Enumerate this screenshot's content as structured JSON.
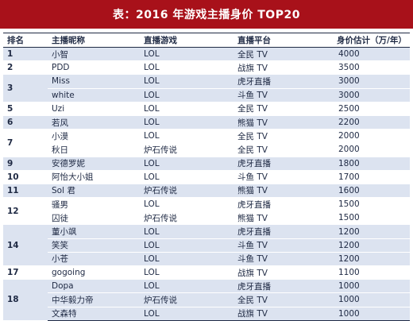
{
  "title": "表：2016 年游戏主播身价 TOP20",
  "headers": {
    "rank": "排名",
    "name": "主播昵称",
    "game": "直播游戏",
    "platform": "直播平台",
    "value": "身价估计（万/年）"
  },
  "groups": [
    {
      "rank": "1",
      "rows": [
        {
          "name": "小智",
          "game": "LOL",
          "platform": "全民 TV",
          "value": "4000"
        }
      ]
    },
    {
      "rank": "2",
      "rows": [
        {
          "name": "PDD",
          "game": "LOL",
          "platform": "战旗 TV",
          "value": "3500"
        }
      ]
    },
    {
      "rank": "3",
      "rows": [
        {
          "name": "Miss",
          "game": "LOL",
          "platform": "虎牙直播",
          "value": "3000"
        },
        {
          "name": "white",
          "game": "LOL",
          "platform": "斗鱼 TV",
          "value": "3000"
        }
      ]
    },
    {
      "rank": "5",
      "rows": [
        {
          "name": "Uzi",
          "game": "LOL",
          "platform": "全民 TV",
          "value": "2500"
        }
      ]
    },
    {
      "rank": "6",
      "rows": [
        {
          "name": "若风",
          "game": "LOL",
          "platform": "熊猫 TV",
          "value": "2200"
        }
      ]
    },
    {
      "rank": "7",
      "rows": [
        {
          "name": "小漠",
          "game": "LOL",
          "platform": "全民 TV",
          "value": "2000"
        },
        {
          "name": "秋日",
          "game": "炉石传说",
          "platform": "全民 TV",
          "value": "2000"
        }
      ]
    },
    {
      "rank": "9",
      "rows": [
        {
          "name": "安德罗妮",
          "game": "LOL",
          "platform": "虎牙直播",
          "value": "1800"
        }
      ]
    },
    {
      "rank": "10",
      "rows": [
        {
          "name": "阿怡大小姐",
          "game": "LOL",
          "platform": "斗鱼 TV",
          "value": "1700"
        }
      ]
    },
    {
      "rank": "11",
      "rows": [
        {
          "name": "Sol 君",
          "game": "炉石传说",
          "platform": "熊猫 TV",
          "value": "1600"
        }
      ]
    },
    {
      "rank": "12",
      "rows": [
        {
          "name": "骚男",
          "game": "LOL",
          "platform": "虎牙直播",
          "value": "1500"
        },
        {
          "name": "囚徒",
          "game": "炉石传说",
          "platform": "熊猫 TV",
          "value": "1500"
        }
      ]
    },
    {
      "rank": "14",
      "rows": [
        {
          "name": "董小飒",
          "game": "LOL",
          "platform": "虎牙直播",
          "value": "1200"
        },
        {
          "name": "笑笑",
          "game": "LOL",
          "platform": "斗鱼 TV",
          "value": "1200"
        },
        {
          "name": "小苍",
          "game": "LOL",
          "platform": "斗鱼 TV",
          "value": "1200"
        }
      ]
    },
    {
      "rank": "17",
      "rows": [
        {
          "name": "gogoing",
          "game": "LOL",
          "platform": "战旗 TV",
          "value": "1100"
        }
      ]
    },
    {
      "rank": "18",
      "rows": [
        {
          "name": "Dopa",
          "game": "LOL",
          "platform": "虎牙直播",
          "value": "1000"
        },
        {
          "name": "中华毅力帝",
          "game": "炉石传说",
          "platform": "全民 TV",
          "value": "1000"
        },
        {
          "name": "文森特",
          "game": "LOL",
          "platform": "战旗 TV",
          "value": "1000"
        }
      ]
    }
  ]
}
